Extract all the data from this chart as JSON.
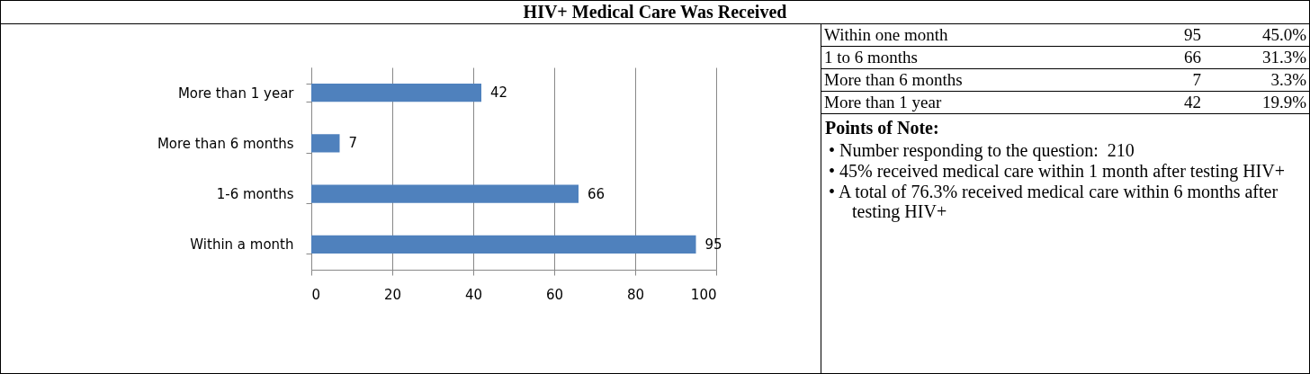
{
  "chart_data": [
    {
      "type": "bar",
      "title": "HIV+ Medical Care Was Received",
      "orientation": "horizontal",
      "categories": [
        "More than 1 year",
        "More than 6 months",
        "1-6 months",
        "Within a month"
      ],
      "values": [
        42,
        7,
        66,
        95
      ],
      "color": "#4f81bd",
      "xlim": [
        0,
        100
      ],
      "xticks": [
        0,
        20,
        40,
        60,
        80,
        100
      ],
      "grid": "x",
      "data_labels": true
    },
    {
      "type": "other",
      "title": "Points of Note:",
      "cell_labels": [
        [
          "Within one month",
          "95",
          "45.0%"
        ],
        [
          "1 to 6 months",
          "66",
          "31.3%"
        ],
        [
          "More than 6 months",
          "7",
          "3.3%"
        ],
        [
          "More than 1 year",
          "42",
          "19.9%"
        ]
      ],
      "annotations": [
        "• Number responding to the question:  210",
        "• 45% received medical care within 1 month after testing HIV+",
        "• A total of 76.3% received medical care within 6 months after testing HIV+"
      ]
    }
  ]
}
